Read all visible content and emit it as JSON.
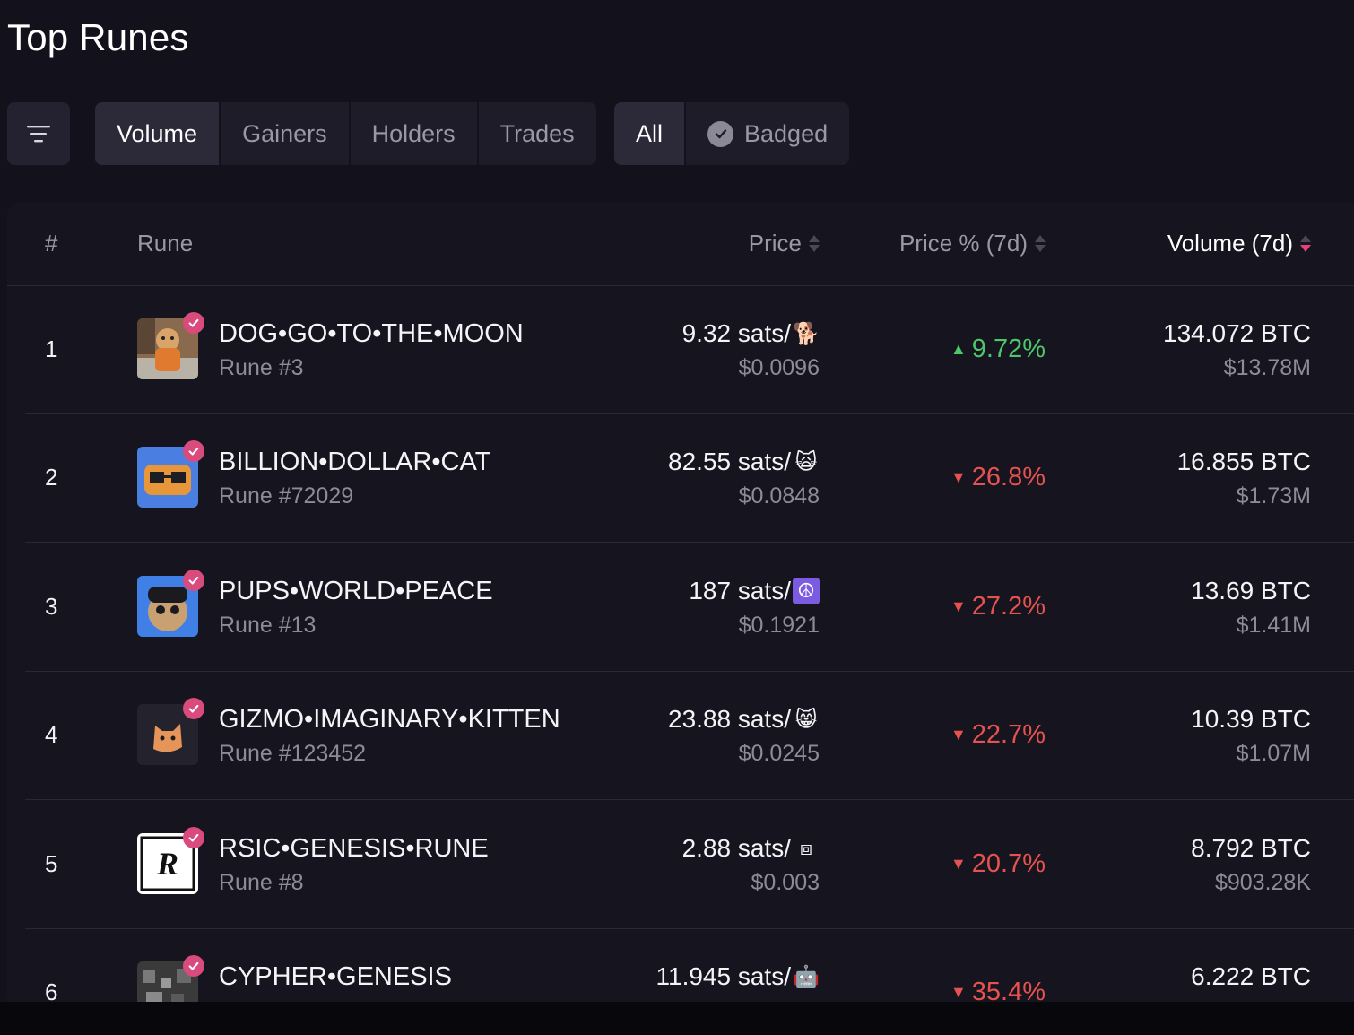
{
  "page": {
    "title": "Top Runes"
  },
  "filters": {
    "sort_tabs": [
      "Volume",
      "Gainers",
      "Holders",
      "Trades"
    ],
    "active_sort": "Volume",
    "scope_tabs": [
      "All",
      "Badged"
    ],
    "active_scope": "All"
  },
  "table": {
    "headers": {
      "rank": "#",
      "rune": "Rune",
      "price": "Price",
      "price_pct": "Price % (7d)",
      "volume": "Volume (7d)"
    },
    "rows": [
      {
        "rank": "1",
        "name": "DOG•GO•TO•THE•MOON",
        "sub": "Rune #3",
        "price": "9.32 sats/",
        "symbol": "🐕",
        "usd": "$0.0096",
        "pct": "9.72%",
        "dir": "up",
        "vol": "134.072 BTC",
        "vol_usd": "$13.78M"
      },
      {
        "rank": "2",
        "name": "BILLION•DOLLAR•CAT",
        "sub": "Rune #72029",
        "price": "82.55 sats/",
        "symbol": "🙀",
        "usd": "$0.0848",
        "pct": "26.8%",
        "dir": "down",
        "vol": "16.855 BTC",
        "vol_usd": "$1.73M"
      },
      {
        "rank": "3",
        "name": "PUPS•WORLD•PEACE",
        "sub": "Rune #13",
        "price": "187 sats/",
        "symbol": "☮",
        "usd": "$0.1921",
        "pct": "27.2%",
        "dir": "down",
        "vol": "13.69 BTC",
        "vol_usd": "$1.41M"
      },
      {
        "rank": "4",
        "name": "GIZMO•IMAGINARY•KITTEN",
        "sub": "Rune #123452",
        "price": "23.88 sats/",
        "symbol": "😸",
        "usd": "$0.0245",
        "pct": "22.7%",
        "dir": "down",
        "vol": "10.39 BTC",
        "vol_usd": "$1.07M"
      },
      {
        "rank": "5",
        "name": "RSIC•GENESIS•RUNE",
        "sub": "Rune #8",
        "price": "2.88 sats/",
        "symbol": "⧈",
        "usd": "$0.003",
        "pct": "20.7%",
        "dir": "down",
        "vol": "8.792 BTC",
        "vol_usd": "$903.28K"
      },
      {
        "rank": "6",
        "name": "CYPHER•GENESIS",
        "sub": "",
        "price": "11.945 sats/",
        "symbol": "🤖",
        "usd": "",
        "pct": "35.4%",
        "dir": "down",
        "vol": "6.222 BTC",
        "vol_usd": ""
      }
    ]
  },
  "colors": {
    "up": "#4cc76a",
    "down": "#e5524f",
    "badge": "#d94a7d",
    "sort_active": "#e8417a"
  }
}
